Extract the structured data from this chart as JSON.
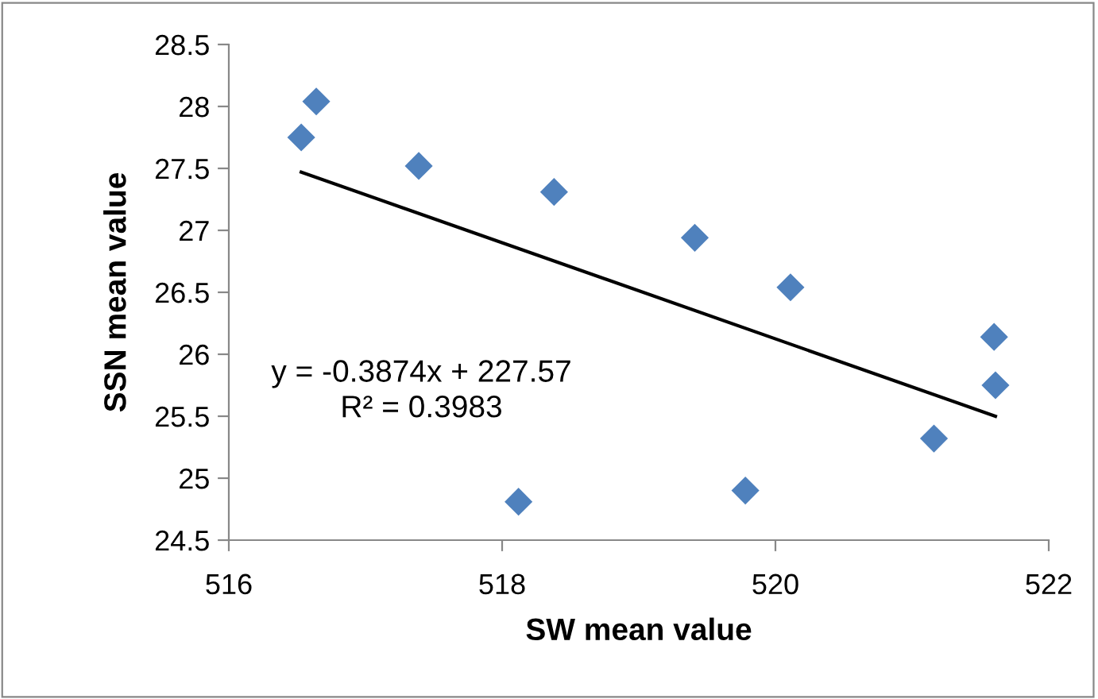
{
  "chart_data": {
    "type": "scatter",
    "xlabel": "SW mean value",
    "ylabel": "SSN mean value",
    "xlim": [
      516,
      522
    ],
    "xticks": [
      516,
      518,
      520,
      522
    ],
    "ylim": [
      24.5,
      28.5
    ],
    "yticks": [
      24.5,
      25,
      25.5,
      26,
      26.5,
      27,
      27.5,
      28,
      28.5
    ],
    "grid": false,
    "legend": false,
    "marker": "diamond",
    "series": [
      {
        "color": "#4f81bd",
        "x": [
          516.53,
          516.64,
          517.39,
          518.38,
          518.12,
          519.41,
          520.11,
          519.78,
          521.6,
          521.61,
          521.16
        ],
        "values": [
          27.75,
          28.04,
          27.52,
          27.31,
          24.81,
          26.94,
          26.54,
          24.9,
          26.14,
          25.75,
          25.32
        ]
      },
      {
        "type": "line",
        "color": "#000000",
        "marker": "none",
        "line_style": "solid",
        "x": [
          516.53,
          521.61
        ],
        "values": [
          27.47,
          25.5
        ]
      }
    ],
    "annotations": [
      "y = -0.3874x + 227.57\nR² = 0.3983"
    ]
  }
}
